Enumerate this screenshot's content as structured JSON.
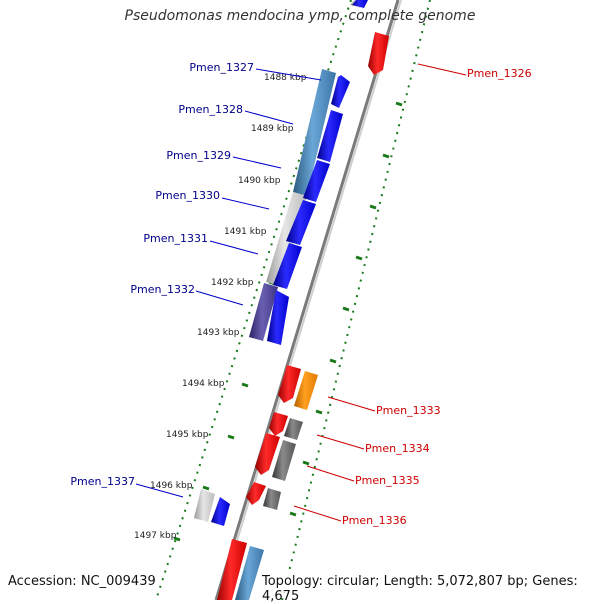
{
  "title": "Pseudomonas mendocina ymp, complete genome",
  "footer": {
    "accession": "Accession: NC_009439",
    "stats": "Topology: circular; Length: 5,072,807 bp; Genes: 4,675"
  },
  "ticks": [
    "1488 kbp",
    "1489 kbp",
    "1490 kbp",
    "1491 kbp",
    "1492 kbp",
    "1493 kbp",
    "1494 kbp",
    "1495 kbp",
    "1496 kbp",
    "1497 kbp"
  ],
  "genes_left": [
    "Pmen_1327",
    "Pmen_1328",
    "Pmen_1329",
    "Pmen_1330",
    "Pmen_1331",
    "Pmen_1332",
    "Pmen_1337"
  ],
  "genes_right": [
    "Pmen_1326",
    "Pmen_1333",
    "Pmen_1334",
    "Pmen_1335",
    "Pmen_1336"
  ],
  "colors": {
    "forward_cds": "#0000ee",
    "reverse_cds": "#ee0000",
    "label_forward": "#00008b",
    "label_reverse": "#cc0000",
    "tick": "#1a7a1a",
    "backbone": "#888888",
    "orange": "#ff8c00",
    "gray_feature": "#666666",
    "steel_blue": "#4682b4",
    "slate": "#483d8b",
    "light_gray": "#bbbbbb"
  }
}
